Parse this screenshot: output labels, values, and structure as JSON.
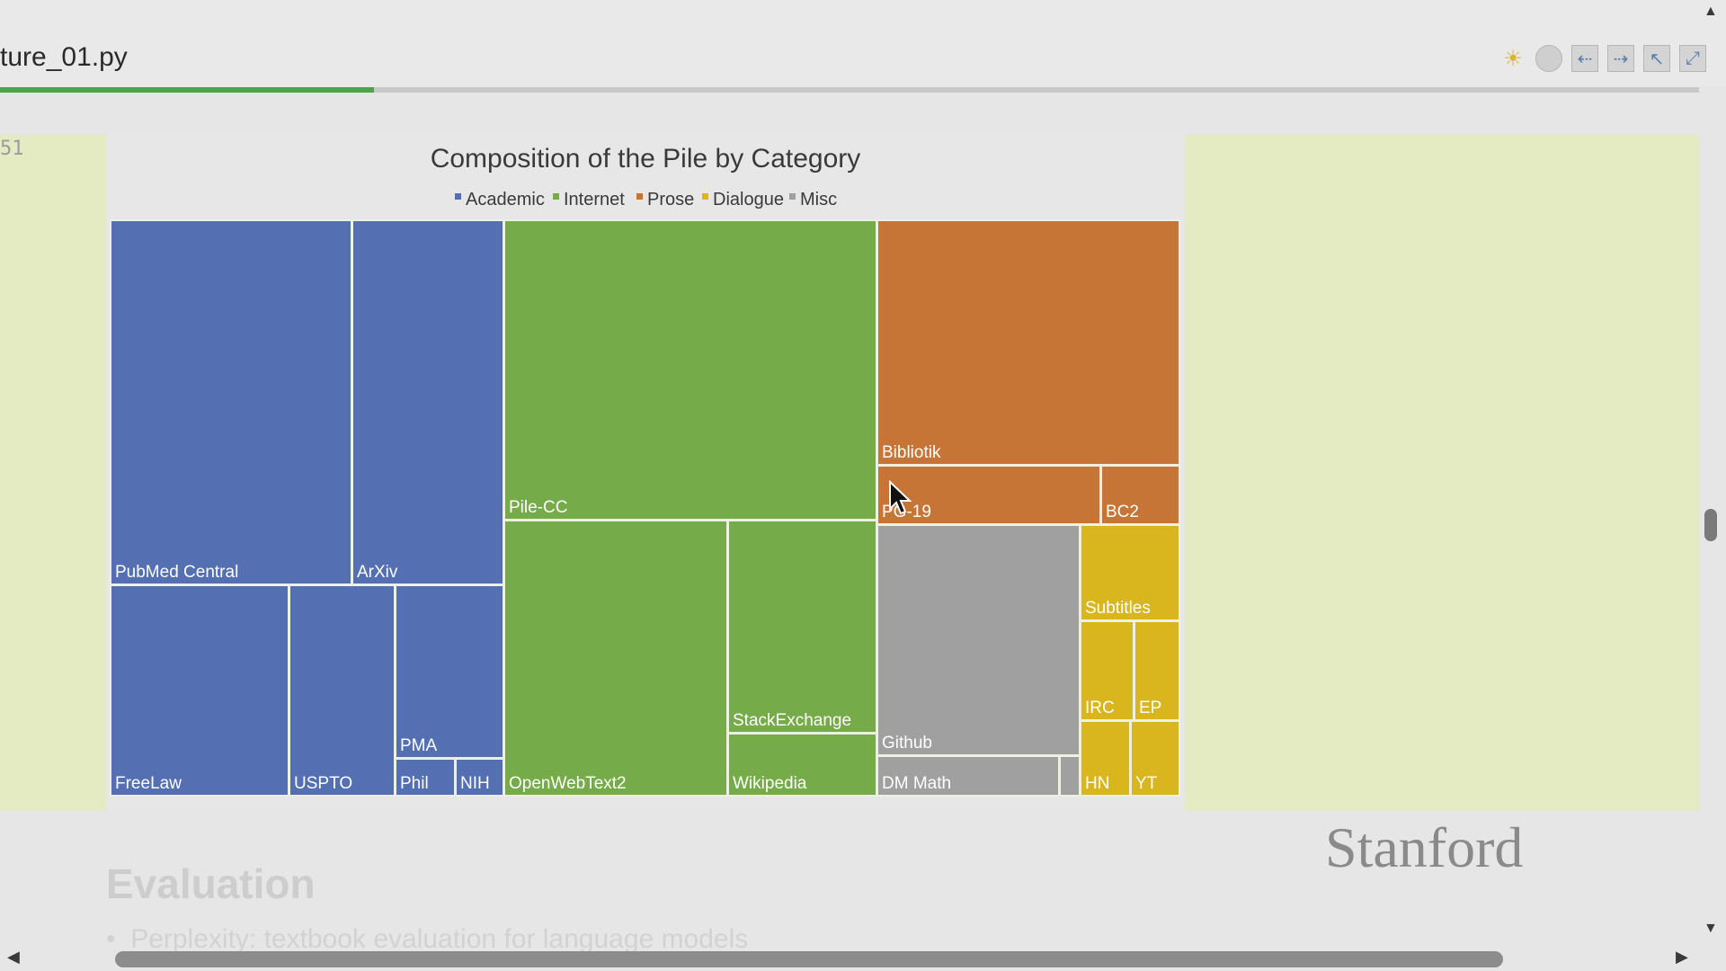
{
  "window": {
    "file_title": "ture_01.py",
    "progress_fraction": 0.22
  },
  "toolbar": {
    "icons": [
      "sun-cloud-icon",
      "circle-icon",
      "arrow-left-icon",
      "arrow-right-icon",
      "arrow-up-left-icon",
      "expand-icon"
    ]
  },
  "editor": {
    "line_number": "51"
  },
  "colors": {
    "Academic": "#5470b3",
    "Internet": "#76ab49",
    "Prose": "#c67536",
    "Dialogue": "#d9b61d",
    "Misc": "#a0a0a0",
    "progress": "#4aa64a"
  },
  "chart_data": {
    "type": "treemap",
    "title": "Composition of the Pile by Category",
    "legend": [
      "Academic",
      "Internet",
      "Prose",
      "Dialogue",
      "Misc"
    ],
    "legend_position": "top",
    "categories": [
      {
        "name": "Academic",
        "items": [
          "PubMed Central",
          "ArXiv",
          "FreeLaw",
          "USPTO",
          "PMA",
          "Phil",
          "NIH"
        ]
      },
      {
        "name": "Internet",
        "items": [
          "Pile-CC",
          "OpenWebText2",
          "StackExchange",
          "Wikipedia"
        ]
      },
      {
        "name": "Prose",
        "items": [
          "Bibliotik",
          "PG-19",
          "BC2"
        ]
      },
      {
        "name": "Dialogue",
        "items": [
          "Subtitles",
          "IRC",
          "EP",
          "HN",
          "YT"
        ]
      },
      {
        "name": "Misc",
        "items": [
          "Github",
          "DM Math"
        ]
      }
    ]
  },
  "slide": {
    "logo": "Stanford",
    "next_heading": "Evaluation",
    "next_bullet": "Perplexity: textbook evaluation for language models"
  }
}
